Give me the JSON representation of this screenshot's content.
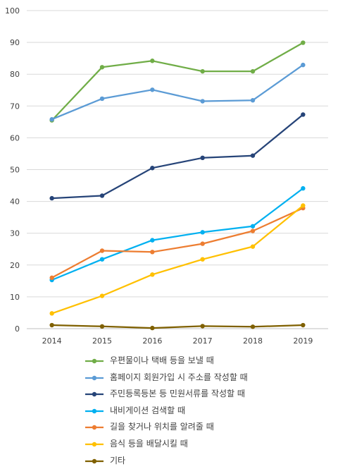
{
  "chart_data": {
    "type": "line",
    "title": "",
    "xlabel": "",
    "ylabel": "",
    "ylim": [
      0,
      100
    ],
    "yticks": [
      0,
      10,
      20,
      30,
      40,
      50,
      60,
      70,
      80,
      90,
      100
    ],
    "grid": true,
    "legend_position": "bottom",
    "x": [
      "2014",
      "2015",
      "2016",
      "2017",
      "2018",
      "2019"
    ],
    "series": [
      {
        "name": "우편물이나 택배 등을 보낼 때",
        "color": "#70AD47",
        "values": [
          65.5,
          82.2,
          84.2,
          80.9,
          80.9,
          89.9
        ]
      },
      {
        "name": "홈페이지 회원가입 시 주소를 작성할 때",
        "color": "#5B9BD5",
        "values": [
          65.8,
          72.3,
          75.1,
          71.5,
          71.8,
          82.9
        ]
      },
      {
        "name": "주민등록등본 등 민원서류를 작성할 때",
        "color": "#264478",
        "values": [
          41.0,
          41.8,
          50.5,
          53.7,
          54.4,
          67.3
        ]
      },
      {
        "name": "내비게이션 검색할 때",
        "color": "#00B0F0",
        "values": [
          15.3,
          21.8,
          27.8,
          30.3,
          32.2,
          44.1
        ]
      },
      {
        "name": "길을 찾거나 위치를 알려줄 때",
        "color": "#ED7D31",
        "values": [
          16.0,
          24.5,
          24.1,
          26.7,
          30.7,
          37.9
        ]
      },
      {
        "name": "음식 등을 배달시킬 때",
        "color": "#FFC000",
        "values": [
          4.8,
          10.3,
          17.0,
          21.8,
          25.8,
          38.7
        ]
      },
      {
        "name": "기타",
        "color": "#7F6000",
        "values": [
          1.1,
          0.7,
          0.2,
          0.8,
          0.6,
          1.1
        ]
      }
    ]
  }
}
